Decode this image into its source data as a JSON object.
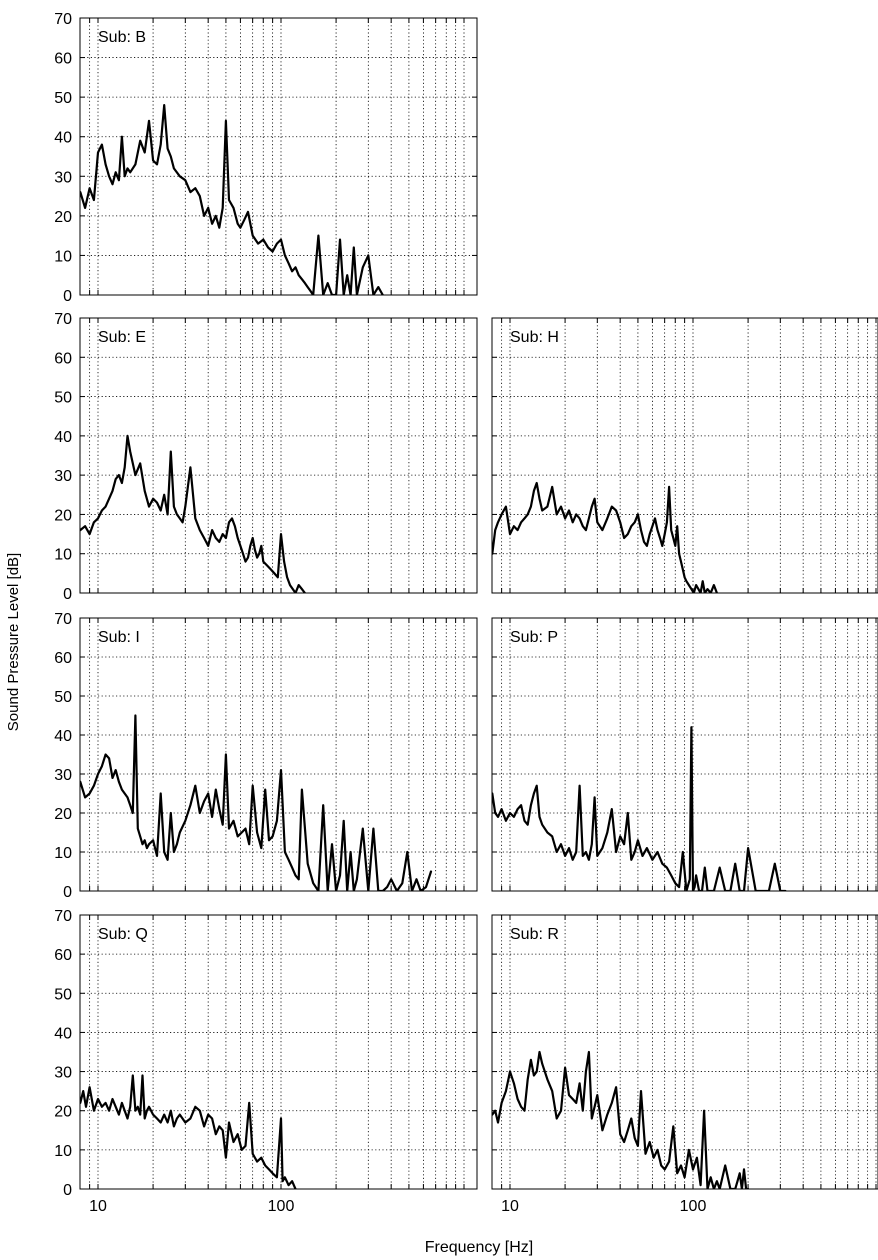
{
  "figure": {
    "ylabel": "Sound Pressure Level [dB]",
    "xlabel": "Frequency [Hz]"
  },
  "chart_data": [
    {
      "type": "line",
      "label": "Sub: B",
      "x_scale": "log",
      "xlim": [
        8,
        900
      ],
      "ylim": [
        0,
        70
      ],
      "yticks": [
        0,
        10,
        20,
        30,
        40,
        50,
        60,
        70
      ],
      "xticks": [],
      "x": [
        8,
        8.5,
        9,
        9.5,
        10,
        10.5,
        11,
        11.5,
        12,
        12.5,
        13,
        13.5,
        14,
        14.5,
        15,
        16,
        17,
        18,
        19,
        20,
        21,
        22,
        23,
        24,
        25,
        26,
        28,
        30,
        32,
        34,
        36,
        38,
        40,
        42,
        44,
        46,
        48,
        50,
        52,
        55,
        58,
        60,
        63,
        66,
        70,
        75,
        80,
        85,
        90,
        95,
        100,
        105,
        110,
        115,
        120,
        125,
        130,
        135,
        140,
        145,
        150,
        160,
        170,
        180,
        190,
        200,
        210,
        220,
        230,
        240,
        250,
        260,
        280,
        300,
        320,
        340,
        360
      ],
      "values": [
        26,
        22,
        27,
        24,
        36,
        38,
        33,
        30,
        28,
        31,
        29,
        40,
        30,
        32,
        31,
        33,
        39,
        36,
        44,
        34,
        33,
        38,
        48,
        37,
        35,
        32,
        30,
        29,
        26,
        27,
        25,
        20,
        22,
        18,
        20,
        17,
        22,
        44,
        24,
        22,
        18,
        17,
        19,
        21,
        15,
        13,
        14,
        12,
        11,
        13,
        14,
        10,
        8,
        6,
        7,
        5,
        4,
        3,
        2,
        1,
        0,
        15,
        0,
        3,
        0,
        0,
        14,
        0,
        5,
        0,
        12,
        0,
        7,
        10,
        0,
        2,
        0
      ]
    },
    {
      "type": "line",
      "label": "Sub: E",
      "x_scale": "log",
      "xlim": [
        8,
        900
      ],
      "ylim": [
        0,
        70
      ],
      "yticks": [
        0,
        10,
        20,
        30,
        40,
        50,
        60,
        70
      ],
      "xticks": [],
      "x": [
        8,
        8.5,
        9,
        9.5,
        10,
        10.5,
        11,
        11.5,
        12,
        12.5,
        13,
        13.5,
        14,
        14.5,
        15,
        16,
        17,
        18,
        19,
        20,
        21,
        22,
        23,
        24,
        25,
        26,
        27,
        28,
        29,
        30,
        32,
        34,
        36,
        38,
        40,
        42,
        44,
        46,
        48,
        50,
        52,
        54,
        56,
        58,
        60,
        62,
        64,
        66,
        68,
        70,
        72,
        74,
        76,
        78,
        80,
        84,
        88,
        92,
        96,
        100,
        104,
        108,
        112,
        116,
        120,
        125,
        130,
        135
      ],
      "values": [
        16,
        17,
        15,
        18,
        19,
        21,
        22,
        24,
        26,
        29,
        30,
        28,
        32,
        40,
        36,
        30,
        33,
        26,
        22,
        24,
        23,
        21,
        25,
        20,
        36,
        22,
        20,
        19,
        18,
        22,
        32,
        19,
        16,
        14,
        12,
        16,
        14,
        13,
        15,
        14,
        18,
        19,
        17,
        14,
        12,
        10,
        8,
        9,
        12,
        14,
        11,
        9,
        10,
        12,
        8,
        7,
        6,
        5,
        4,
        15,
        8,
        4,
        2,
        1,
        0,
        2,
        1,
        0
      ]
    },
    {
      "type": "line",
      "label": "Sub: H",
      "x_scale": "log",
      "xlim": [
        8,
        900
      ],
      "ylim": [
        0,
        70
      ],
      "yticks": [
        0,
        10,
        20,
        30,
        40,
        50,
        60,
        70
      ],
      "xticks": [],
      "x": [
        8,
        8.3,
        8.6,
        9,
        9.5,
        10,
        10.5,
        11,
        11.5,
        12,
        12.5,
        13,
        13.5,
        14,
        14.5,
        15,
        16,
        17,
        18,
        19,
        20,
        21,
        22,
        23,
        24,
        25,
        26,
        27,
        28,
        29,
        30,
        32,
        34,
        36,
        38,
        40,
        42,
        44,
        46,
        48,
        50,
        52,
        54,
        56,
        58,
        60,
        62,
        64,
        66,
        68,
        70,
        72,
        74,
        76,
        78,
        80,
        82,
        84,
        86,
        88,
        90,
        92,
        95,
        98,
        101,
        104,
        107,
        110,
        113,
        116,
        120,
        125,
        130,
        135
      ],
      "values": [
        10,
        16,
        18,
        20,
        22,
        15,
        17,
        16,
        18,
        19,
        20,
        22,
        26,
        28,
        24,
        21,
        22,
        27,
        20,
        22,
        19,
        21,
        18,
        20,
        19,
        17,
        16,
        19,
        22,
        24,
        18,
        16,
        19,
        22,
        21,
        18,
        14,
        15,
        17,
        18,
        20,
        16,
        13,
        12,
        15,
        17,
        19,
        16,
        14,
        12,
        15,
        18,
        27,
        16,
        14,
        12,
        17,
        10,
        8,
        6,
        4,
        3,
        2,
        1,
        0,
        2,
        1,
        0,
        3,
        0,
        1,
        0,
        2,
        0
      ]
    },
    {
      "type": "line",
      "label": "Sub: I",
      "x_scale": "log",
      "xlim": [
        8,
        900
      ],
      "ylim": [
        0,
        70
      ],
      "yticks": [
        0,
        10,
        20,
        30,
        40,
        50,
        60,
        70
      ],
      "xticks": [],
      "x": [
        8,
        8.5,
        9,
        9.5,
        10,
        10.5,
        11,
        11.5,
        12,
        12.5,
        13,
        13.5,
        14,
        14.5,
        15,
        15.5,
        16,
        16.5,
        17,
        17.5,
        18,
        18.5,
        19,
        20,
        21,
        22,
        23,
        24,
        25,
        26,
        27,
        28,
        30,
        32,
        34,
        36,
        38,
        40,
        42,
        44,
        46,
        48,
        50,
        52,
        55,
        58,
        61,
        64,
        67,
        70,
        74,
        78,
        82,
        86,
        90,
        95,
        100,
        105,
        110,
        115,
        120,
        125,
        130,
        140,
        150,
        160,
        170,
        180,
        190,
        200,
        210,
        220,
        230,
        240,
        250,
        260,
        280,
        300,
        320,
        340,
        360,
        380,
        400,
        430,
        460,
        490,
        520,
        550,
        580,
        620,
        660
      ],
      "values": [
        28,
        24,
        25,
        27,
        30,
        32,
        35,
        34,
        29,
        31,
        28,
        26,
        25,
        24,
        22,
        20,
        45,
        16,
        14,
        12,
        13,
        11,
        12,
        13,
        9,
        25,
        10,
        8,
        20,
        10,
        12,
        15,
        18,
        22,
        27,
        20,
        23,
        25,
        19,
        26,
        21,
        17,
        35,
        16,
        18,
        14,
        15,
        16,
        12,
        27,
        15,
        11,
        26,
        13,
        14,
        18,
        31,
        10,
        8,
        6,
        4,
        3,
        26,
        7,
        2,
        0,
        22,
        0,
        12,
        0,
        4,
        18,
        0,
        10,
        0,
        3,
        16,
        0,
        16,
        0,
        0,
        1,
        3,
        0,
        2,
        10,
        0,
        3,
        0,
        1,
        5
      ]
    },
    {
      "type": "line",
      "label": "Sub: P",
      "x_scale": "log",
      "xlim": [
        8,
        900
      ],
      "ylim": [
        0,
        70
      ],
      "yticks": [
        0,
        10,
        20,
        30,
        40,
        50,
        60,
        70
      ],
      "xticks": [],
      "x": [
        8,
        8.3,
        8.6,
        9,
        9.5,
        10,
        10.5,
        11,
        11.5,
        12,
        12.5,
        13,
        13.5,
        14,
        14.5,
        15,
        16,
        17,
        18,
        19,
        20,
        21,
        22,
        23,
        24,
        25,
        26,
        27,
        28,
        29,
        30,
        32,
        34,
        36,
        38,
        40,
        42,
        44,
        46,
        48,
        50,
        53,
        56,
        60,
        64,
        68,
        72,
        76,
        80,
        84,
        88,
        92,
        96,
        98,
        100,
        102,
        104,
        108,
        112,
        116,
        120,
        130,
        140,
        150,
        160,
        170,
        180,
        190,
        200,
        220,
        240,
        260,
        280,
        300,
        320
      ],
      "values": [
        25,
        20,
        19,
        21,
        18,
        20,
        19,
        21,
        22,
        18,
        17,
        22,
        25,
        27,
        19,
        17,
        15,
        14,
        10,
        12,
        9,
        11,
        8,
        10,
        27,
        9,
        10,
        8,
        12,
        24,
        9,
        11,
        15,
        21,
        10,
        14,
        12,
        20,
        8,
        10,
        13,
        9,
        11,
        8,
        10,
        7,
        6,
        4,
        2,
        1,
        10,
        0,
        3,
        42,
        0,
        1,
        4,
        0,
        0,
        6,
        0,
        0,
        6,
        0,
        0,
        7,
        0,
        0,
        11,
        0,
        0,
        0,
        7,
        0,
        0
      ]
    },
    {
      "type": "line",
      "label": "Sub: Q",
      "x_scale": "log",
      "xlim": [
        8,
        900
      ],
      "ylim": [
        0,
        70
      ],
      "yticks": [
        0,
        10,
        20,
        30,
        40,
        50,
        60,
        70
      ],
      "xticks": [
        10,
        100
      ],
      "x": [
        8,
        8.3,
        8.6,
        9,
        9.5,
        10,
        10.5,
        11,
        11.5,
        12,
        12.5,
        13,
        13.5,
        14,
        14.5,
        15,
        15.5,
        16,
        16.5,
        17,
        17.5,
        18,
        18.5,
        19,
        20,
        21,
        22,
        23,
        24,
        25,
        26,
        27,
        28,
        30,
        32,
        34,
        36,
        38,
        40,
        42,
        44,
        46,
        48,
        50,
        52,
        55,
        58,
        61,
        64,
        67,
        70,
        74,
        78,
        82,
        86,
        90,
        95,
        100,
        102,
        105,
        110,
        115,
        120
      ],
      "values": [
        22,
        25,
        21,
        26,
        20,
        23,
        21,
        22,
        20,
        23,
        21,
        19,
        22,
        20,
        18,
        21,
        29,
        20,
        21,
        19,
        29,
        18,
        20,
        21,
        19,
        18,
        17,
        19,
        17,
        20,
        16,
        18,
        19,
        17,
        18,
        21,
        20,
        16,
        19,
        18,
        14,
        16,
        15,
        8,
        17,
        12,
        14,
        10,
        11,
        22,
        9,
        7,
        8,
        6,
        5,
        4,
        3,
        18,
        2,
        3,
        1,
        2,
        0
      ]
    },
    {
      "type": "line",
      "label": "Sub: R",
      "x_scale": "log",
      "xlim": [
        8,
        900
      ],
      "ylim": [
        0,
        70
      ],
      "yticks": [
        0,
        10,
        20,
        30,
        40,
        50,
        60,
        70
      ],
      "xticks": [
        10,
        100
      ],
      "x": [
        8,
        8.3,
        8.6,
        9,
        9.5,
        10,
        10.5,
        11,
        11.5,
        12,
        12.5,
        13,
        13.5,
        14,
        14.5,
        15,
        16,
        17,
        18,
        19,
        20,
        21,
        22,
        23,
        24,
        25,
        26,
        27,
        28,
        29,
        30,
        32,
        34,
        36,
        38,
        40,
        42,
        44,
        46,
        48,
        50,
        52,
        55,
        58,
        61,
        64,
        67,
        70,
        74,
        78,
        82,
        86,
        90,
        95,
        100,
        105,
        110,
        115,
        120,
        125,
        130,
        135,
        140,
        150,
        160,
        170,
        175,
        180,
        185,
        190,
        195,
        200
      ],
      "values": [
        19,
        20,
        17,
        22,
        25,
        30,
        27,
        23,
        21,
        20,
        28,
        33,
        29,
        30,
        35,
        32,
        28,
        25,
        18,
        20,
        31,
        24,
        23,
        22,
        27,
        20,
        30,
        35,
        18,
        21,
        24,
        15,
        19,
        22,
        26,
        14,
        12,
        15,
        18,
        13,
        11,
        25,
        9,
        12,
        8,
        10,
        6,
        5,
        7,
        16,
        4,
        6,
        3,
        10,
        5,
        8,
        1,
        20,
        0,
        3,
        0,
        2,
        0,
        6,
        0,
        0,
        2,
        4,
        0,
        5,
        0,
        0
      ]
    }
  ]
}
